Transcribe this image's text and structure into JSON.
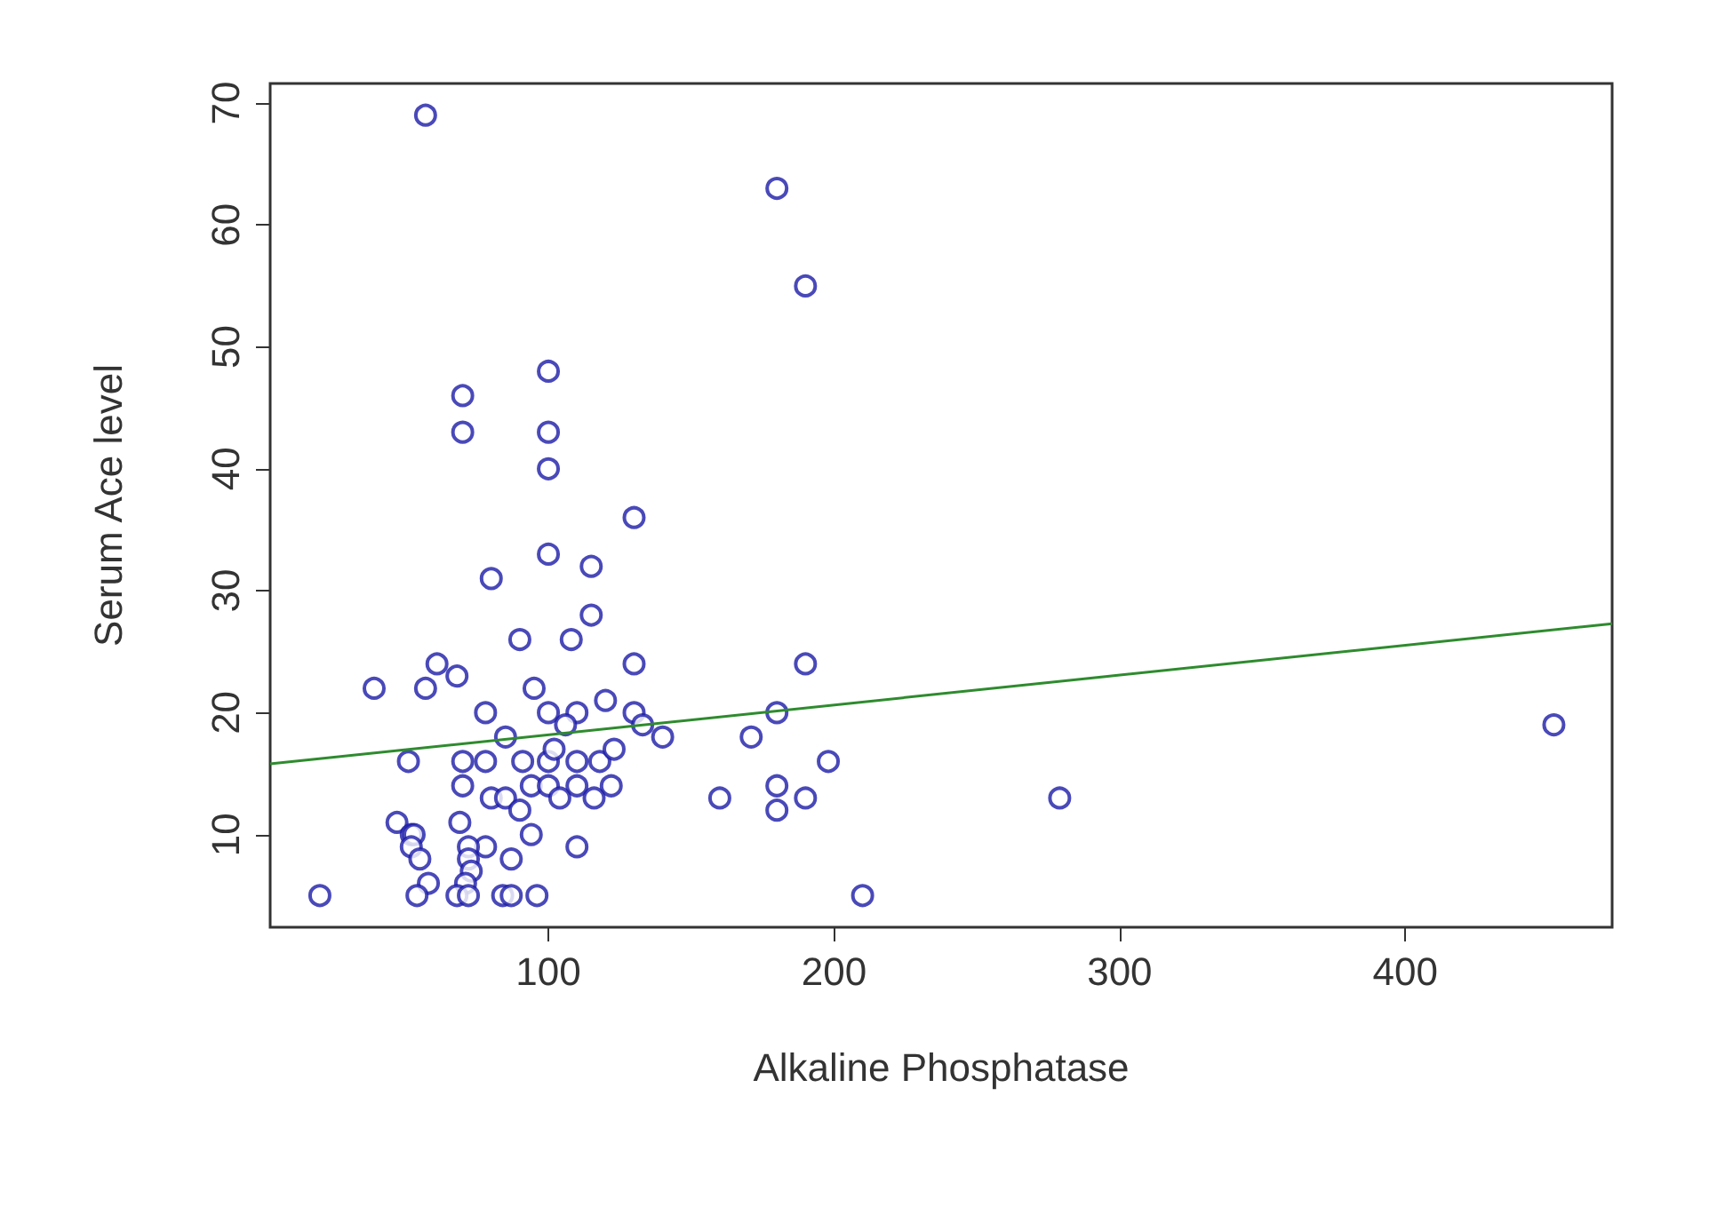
{
  "chart_data": {
    "type": "scatter",
    "xlabel": "Alkaline Phosphatase",
    "ylabel": "Serum Ace level",
    "xlim": [
      2.6,
      472.4
    ],
    "ylim": [
      2.4,
      71.6
    ],
    "xticks": [
      100,
      200,
      300,
      400
    ],
    "yticks": [
      10,
      20,
      30,
      40,
      50,
      60,
      70
    ],
    "grid": false,
    "marker": "circle",
    "series": [
      {
        "color": "#1c1ca8",
        "x": [
          20,
          57,
          180,
          190,
          100,
          70,
          70,
          100,
          100,
          130,
          100,
          80,
          115,
          115,
          90,
          108,
          39,
          57,
          61,
          68,
          95,
          130,
          190,
          78,
          100,
          110,
          120,
          130,
          180,
          133,
          140,
          85,
          106,
          171,
          452,
          51,
          70,
          78,
          91,
          100,
          110,
          118,
          198,
          123,
          102,
          70,
          94,
          100,
          110,
          122,
          180,
          80,
          85,
          104,
          116,
          160,
          190,
          279,
          90,
          180,
          47,
          69,
          52,
          53,
          94,
          52,
          78,
          72,
          110,
          55,
          72,
          87,
          73,
          71,
          58,
          54,
          68,
          72,
          84,
          87,
          96,
          210
        ],
        "values": [
          5,
          69,
          63,
          55,
          48,
          46,
          43,
          43,
          40,
          36,
          33,
          31,
          32,
          28,
          26,
          26,
          22,
          22,
          24,
          23,
          22,
          24,
          24,
          20,
          20,
          20,
          21,
          20,
          20,
          19,
          18,
          18,
          19,
          18,
          19,
          16,
          16,
          16,
          16,
          16,
          16,
          16,
          16,
          17,
          17,
          14,
          14,
          14,
          14,
          14,
          14,
          13,
          13,
          13,
          13,
          13,
          13,
          13,
          12,
          12,
          11,
          11,
          10,
          10,
          10,
          9,
          9,
          9,
          9,
          8,
          8,
          8,
          7,
          6,
          6,
          5,
          5,
          5,
          5,
          5,
          5,
          5
        ]
      },
      {
        "type": "line",
        "color": "#2e8b2e",
        "marker": "none",
        "line_style": "solid",
        "x": [
          2.6,
          472.4
        ],
        "values": [
          15.8,
          27.3
        ]
      }
    ]
  }
}
